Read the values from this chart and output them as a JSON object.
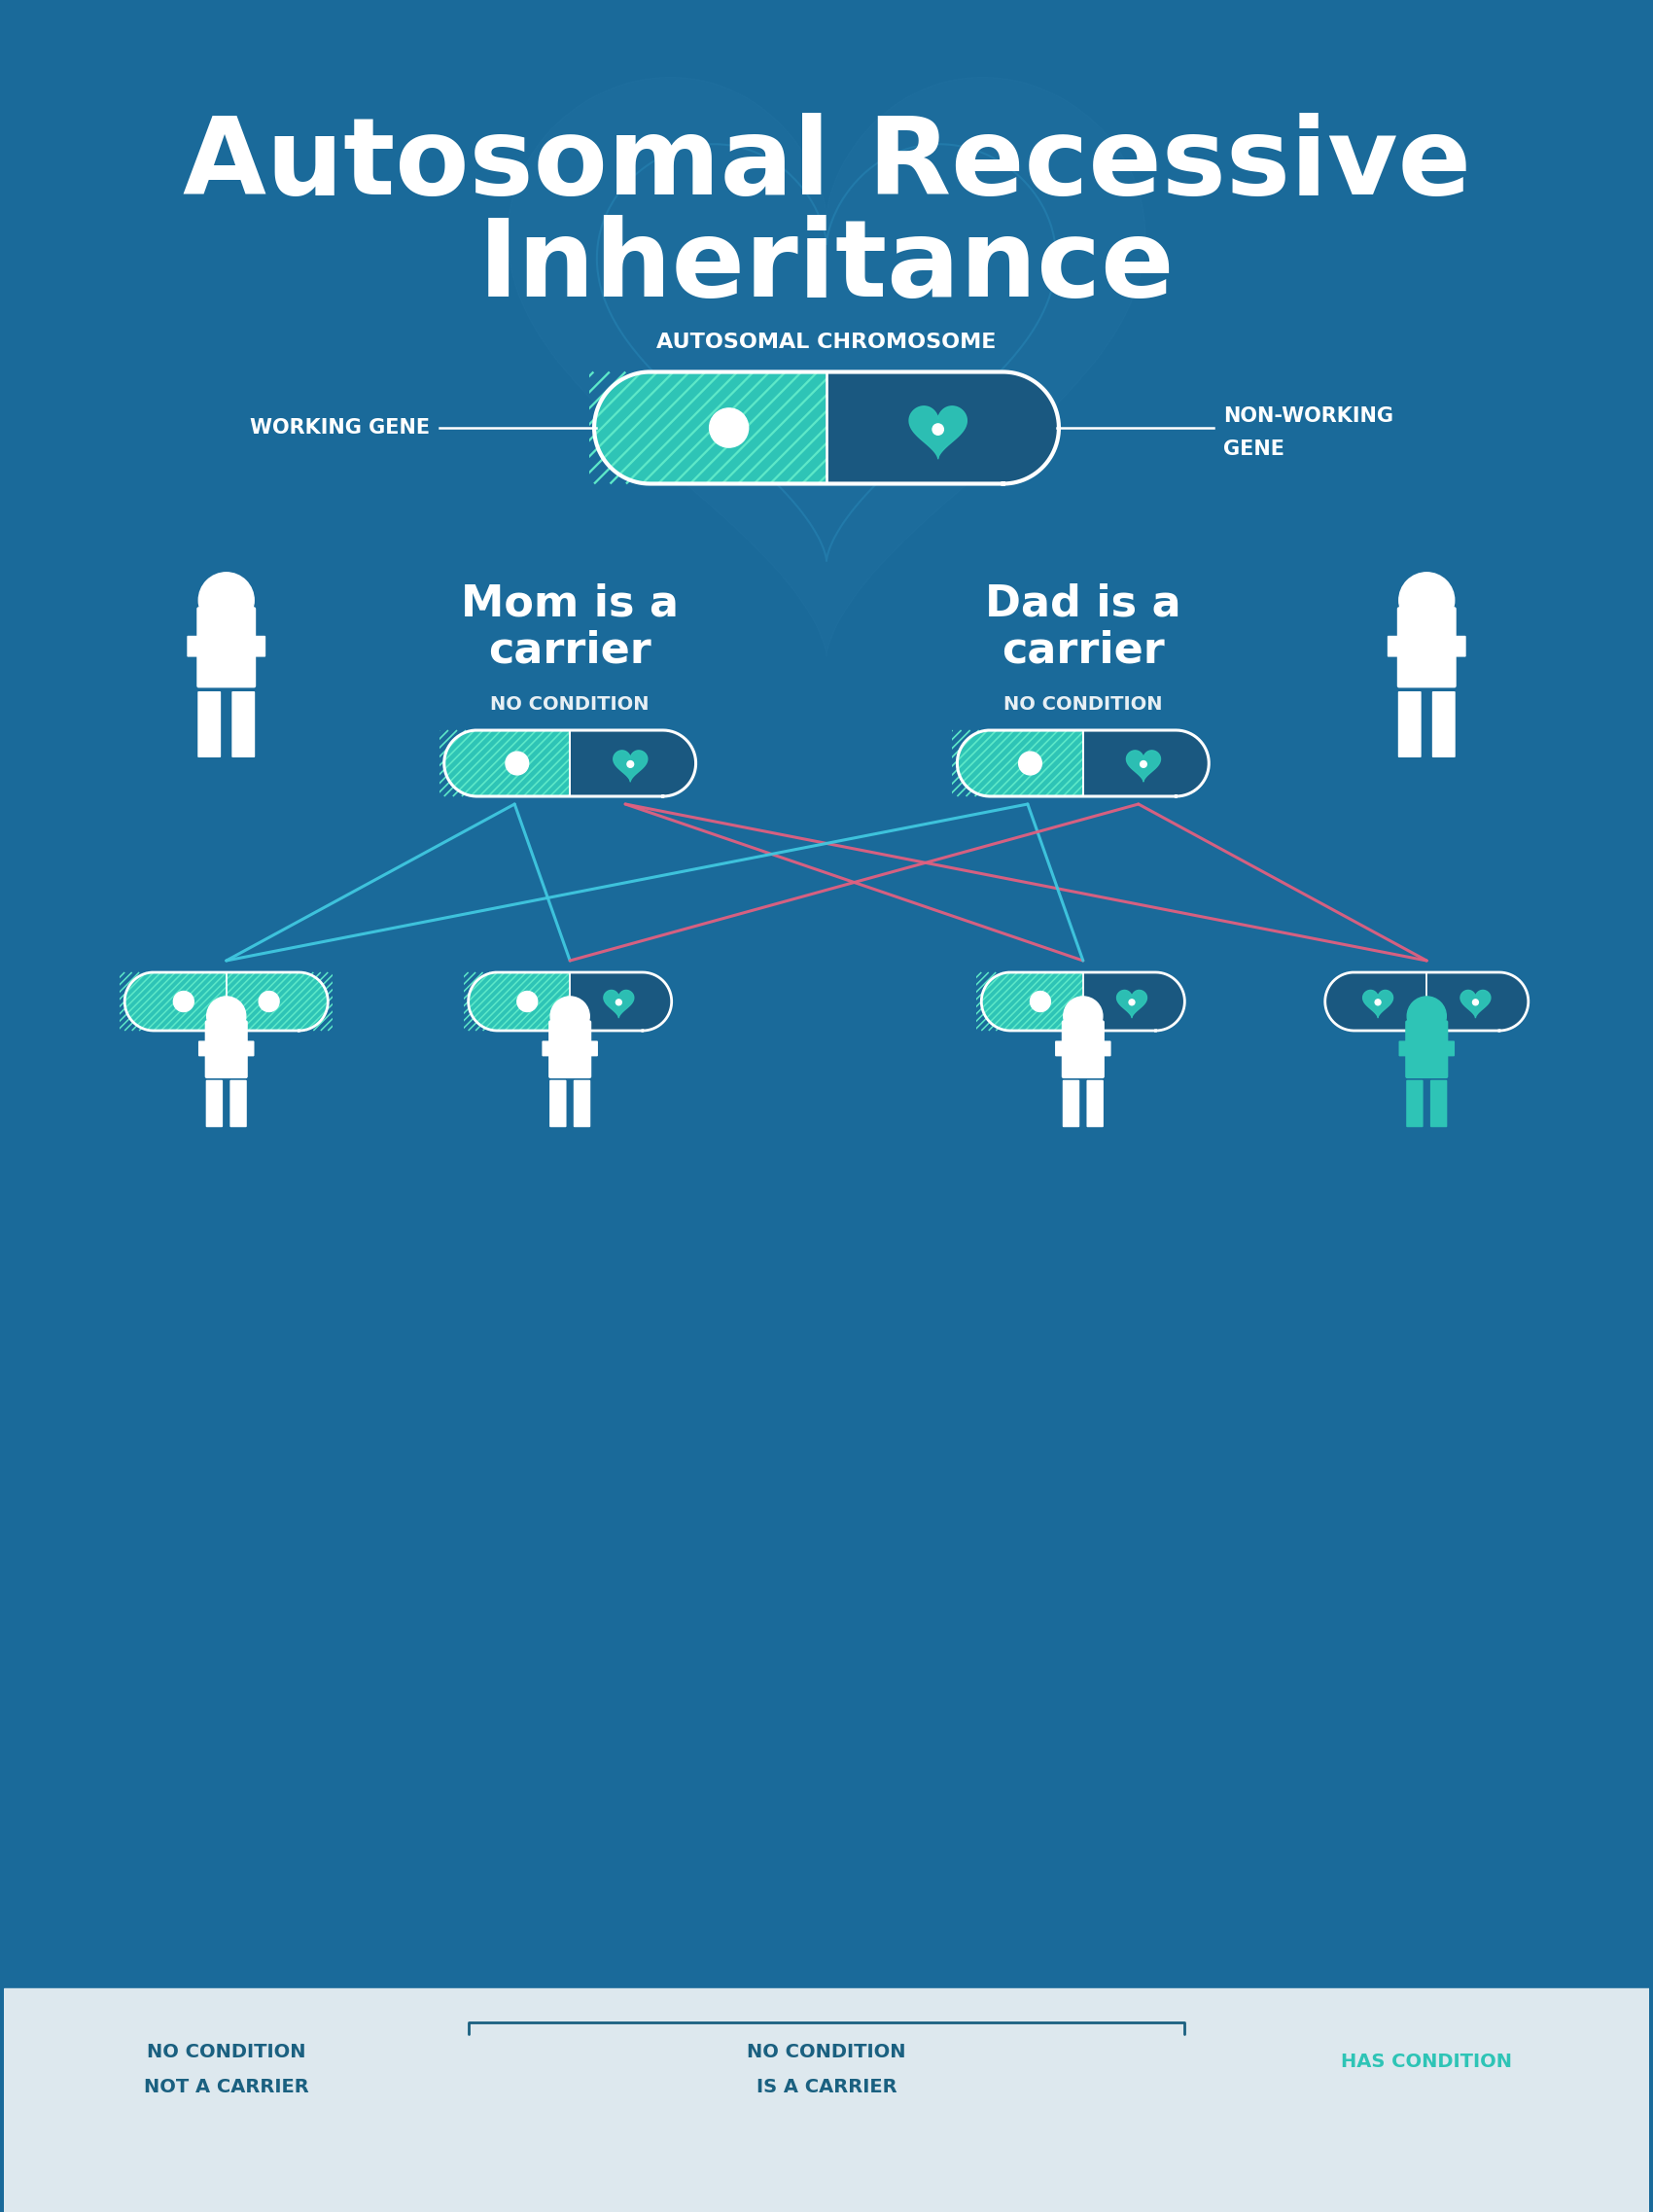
{
  "bg_color": "#1a6a9a",
  "dark_blue_pill": "#1a5880",
  "teal_color": "#2ec4b6",
  "hatch_color": "#5de8c8",
  "white_color": "#ffffff",
  "pink_color": "#e06080",
  "cyan_color": "#40c8e0",
  "green_person_color": "#2ec4b6",
  "bottom_bg_color": "#dde8ee",
  "title_line1": "Autosomal Recessive",
  "title_line2": "Inheritance",
  "chromosome_label": "AUTOSOMAL CHROMOSOME",
  "working_gene_label": "WORKING GENE",
  "nonworking_gene_label1": "NON-WORKING",
  "nonworking_gene_label2": "GENE",
  "mom_label": "Mom is a\ncarrier",
  "dad_label": "Dad is a\ncarrier",
  "mom_sublabel": "NO CONDITION",
  "dad_sublabel": "NO CONDITION",
  "nocond_notcarrier1": "NO CONDITION",
  "nocond_notcarrier2": "NOT A CARRIER",
  "nocond_iscarrier1": "NO CONDITION",
  "nocond_iscarrier2": "IS A CARRIER",
  "has_condition": "HAS CONDITION"
}
